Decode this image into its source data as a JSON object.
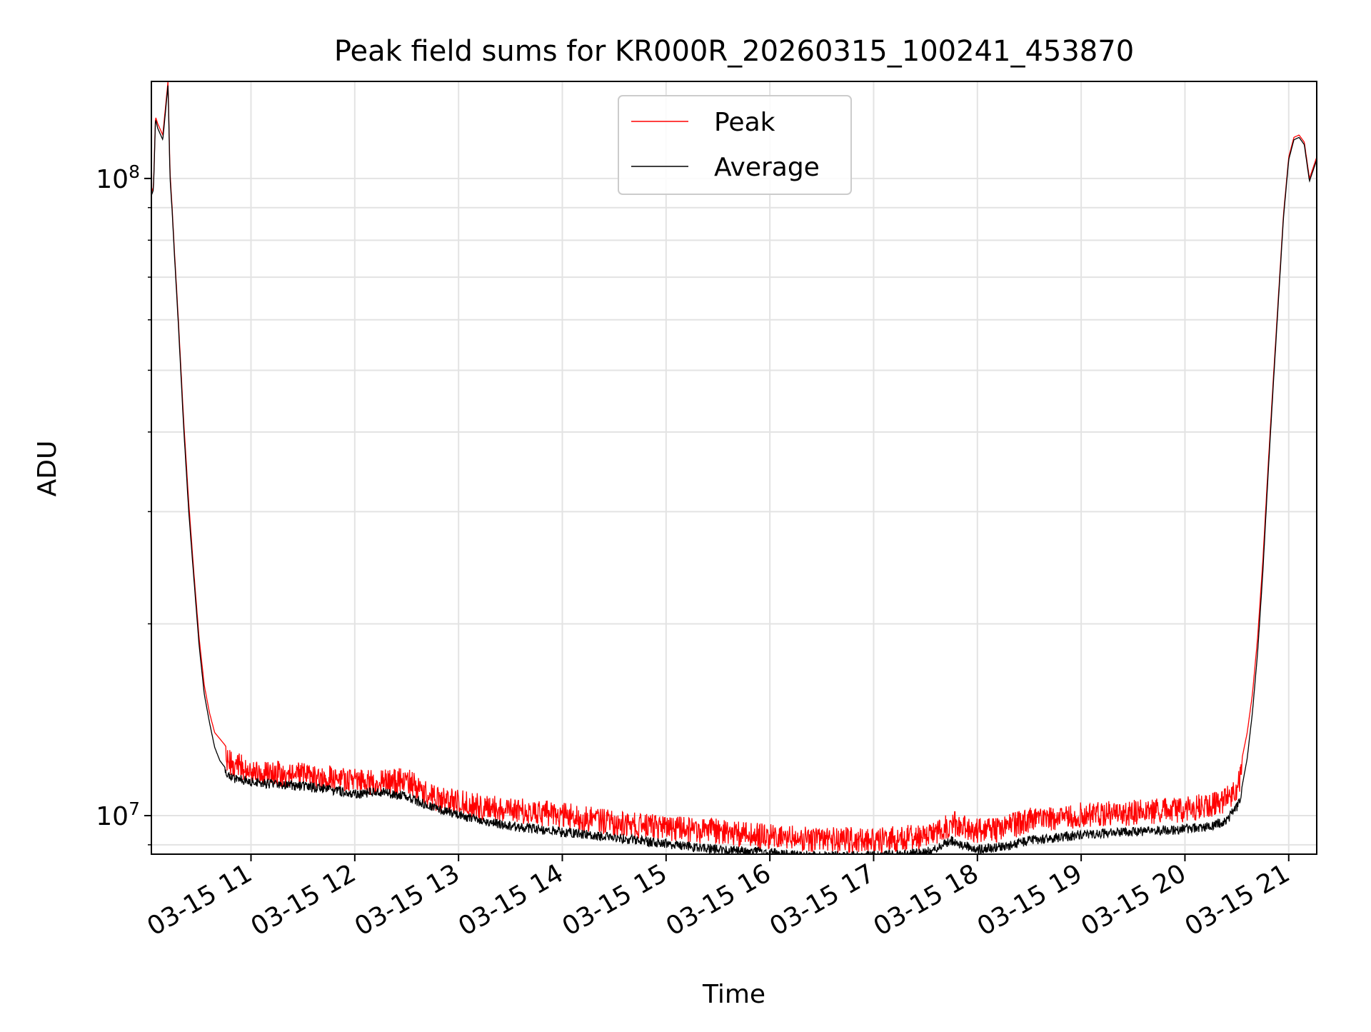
{
  "chart_data": {
    "type": "line",
    "title": "Peak field sums for KR000R_20260315_100241_453870",
    "xlabel": "Time",
    "ylabel": "ADU",
    "yscale": "log",
    "ylim": [
      8700000,
      142000000
    ],
    "xlim_hours": [
      10.04,
      21.27
    ],
    "grid": true,
    "legend_position": "upper center",
    "x_ticks": [
      {
        "hour": 11,
        "label": "03-15 11"
      },
      {
        "hour": 12,
        "label": "03-15 12"
      },
      {
        "hour": 13,
        "label": "03-15 13"
      },
      {
        "hour": 14,
        "label": "03-15 14"
      },
      {
        "hour": 15,
        "label": "03-15 15"
      },
      {
        "hour": 16,
        "label": "03-15 16"
      },
      {
        "hour": 17,
        "label": "03-15 17"
      },
      {
        "hour": 18,
        "label": "03-15 18"
      },
      {
        "hour": 19,
        "label": "03-15 19"
      },
      {
        "hour": 20,
        "label": "03-15 20"
      },
      {
        "hour": 21,
        "label": "03-15 21"
      }
    ],
    "y_ticks": [
      {
        "value": 10000000,
        "base": "10",
        "exp": "7"
      },
      {
        "value": 100000000,
        "base": "10",
        "exp": "8"
      }
    ],
    "series": [
      {
        "name": "Peak",
        "color": "#ff0000",
        "x_hours": [
          10.04,
          10.06,
          10.08,
          10.1,
          10.15,
          10.2,
          10.22,
          10.24,
          10.26,
          10.3,
          10.35,
          10.4,
          10.45,
          10.5,
          10.55,
          10.6,
          10.65,
          10.7,
          10.75,
          10.8,
          10.9,
          11.0,
          11.25,
          11.5,
          11.75,
          12.0,
          12.25,
          12.5,
          12.75,
          13.0,
          13.25,
          13.5,
          13.75,
          14.0,
          14.5,
          15.0,
          15.5,
          16.0,
          16.5,
          17.0,
          17.5,
          17.75,
          18.0,
          18.25,
          18.5,
          19.0,
          19.5,
          20.0,
          20.25,
          20.4,
          20.5,
          20.55,
          20.6,
          20.65,
          20.7,
          20.75,
          20.8,
          20.85,
          20.9,
          20.95,
          21.0,
          21.05,
          21.1,
          21.15,
          21.2,
          21.27
        ],
        "values": [
          95000000,
          97000000,
          125000000,
          122000000,
          117000000,
          142000000,
          102000000,
          90000000,
          78000000,
          60000000,
          42000000,
          31000000,
          24000000,
          19000000,
          16000000,
          14500000,
          13500000,
          13200000,
          12900000,
          12700000,
          12500000,
          12300000,
          12200000,
          12100000,
          12000000,
          11900000,
          11800000,
          11900000,
          11200000,
          11000000,
          10800000,
          10700000,
          10600000,
          10500000,
          10200000,
          10000000,
          9900000,
          9700000,
          9600000,
          9600000,
          9700000,
          10200000,
          9900000,
          10000000,
          10300000,
          10500000,
          10600000,
          10700000,
          10900000,
          11100000,
          11600000,
          12300000,
          13500000,
          15500000,
          19000000,
          25000000,
          35000000,
          48000000,
          65000000,
          88000000,
          108000000,
          116000000,
          117000000,
          114000000,
          100000000,
          108000000
        ]
      },
      {
        "name": "Average",
        "color": "#000000",
        "x_hours": [
          10.04,
          10.06,
          10.08,
          10.1,
          10.15,
          10.2,
          10.22,
          10.24,
          10.26,
          10.3,
          10.35,
          10.4,
          10.45,
          10.5,
          10.55,
          10.6,
          10.65,
          10.7,
          10.75,
          10.8,
          10.9,
          11.0,
          11.25,
          11.5,
          11.75,
          12.0,
          12.25,
          12.5,
          12.75,
          13.0,
          13.25,
          13.5,
          13.75,
          14.0,
          14.5,
          15.0,
          15.5,
          16.0,
          16.5,
          17.0,
          17.5,
          17.75,
          18.0,
          18.25,
          18.5,
          19.0,
          19.5,
          20.0,
          20.25,
          20.4,
          20.5,
          20.55,
          20.6,
          20.65,
          20.7,
          20.75,
          20.8,
          20.85,
          20.9,
          20.95,
          21.0,
          21.05,
          21.1,
          21.15,
          21.2,
          21.27
        ],
        "values": [
          94000000,
          96000000,
          124000000,
          120000000,
          115000000,
          140000000,
          100000000,
          89000000,
          77000000,
          59000000,
          41000000,
          30000000,
          23500000,
          18500000,
          15500000,
          14000000,
          12800000,
          12200000,
          11900000,
          11700000,
          11600000,
          11500000,
          11400000,
          11300000,
          11200000,
          11000000,
          11100000,
          10900000,
          10500000,
          10200000,
          10000000,
          9800000,
          9700000,
          9600000,
          9400000,
          9200000,
          9000000,
          8900000,
          8800000,
          8800000,
          8900000,
          9300000,
          9000000,
          9100000,
          9300000,
          9500000,
          9600000,
          9700000,
          9800000,
          10000000,
          10500000,
          11100000,
          12300000,
          14500000,
          18000000,
          24000000,
          34000000,
          47000000,
          64000000,
          87000000,
          107000000,
          115000000,
          116000000,
          113000000,
          99000000,
          107000000
        ]
      }
    ]
  }
}
